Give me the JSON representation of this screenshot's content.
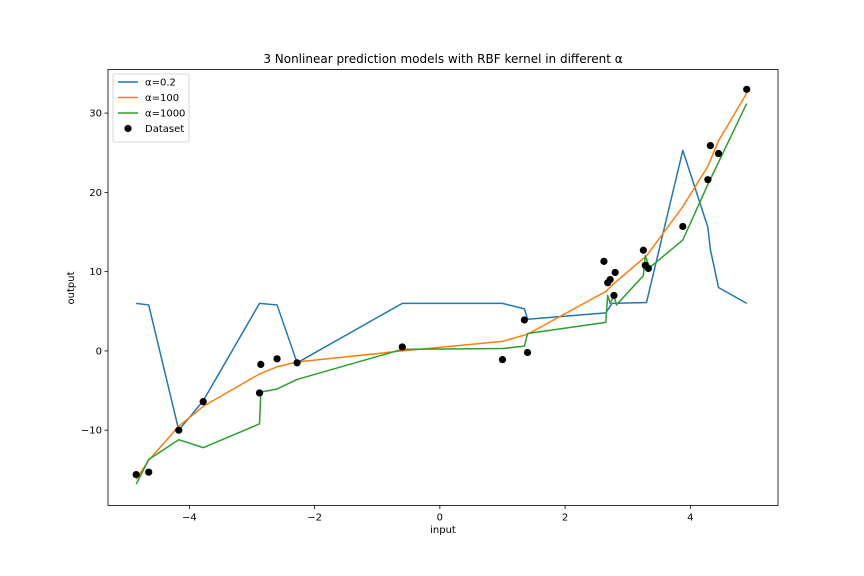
{
  "chart_data": {
    "type": "line",
    "title": "3 Nonlinear prediction models with RBF kernel in different α",
    "xlabel": "input",
    "ylabel": "output",
    "xlim": [
      -5.3,
      5.4
    ],
    "ylim": [
      -19.5,
      35.5
    ],
    "xticks": [
      -4,
      -2,
      0,
      2,
      4
    ],
    "xtick_labels": [
      "−4",
      "−2",
      "0",
      "2",
      "4"
    ],
    "yticks": [
      -10,
      0,
      10,
      20,
      30
    ],
    "ytick_labels": [
      "−10",
      "0",
      "10",
      "20",
      "30"
    ],
    "grid": false,
    "legend_position": "top-left",
    "series": [
      {
        "name": "α=0.2",
        "color": "#1f77b4",
        "marker": "line",
        "x": [
          -4.85,
          -4.65,
          -4.17,
          -3.78,
          -2.88,
          -2.6,
          -2.28,
          -0.6,
          1.0,
          1.35,
          1.4,
          2.65,
          2.75,
          3.3,
          3.88,
          4.28,
          4.32,
          4.45,
          4.9
        ],
        "y": [
          6.0,
          5.8,
          -10.0,
          -6.3,
          6.0,
          5.8,
          -1.5,
          6.0,
          6.0,
          5.3,
          4.0,
          4.8,
          6.0,
          6.1,
          25.3,
          15.6,
          12.8,
          8.0,
          6.0
        ]
      },
      {
        "name": "α=100",
        "color": "#ff7f0e",
        "marker": "line",
        "x": [
          -4.85,
          -4.65,
          -4.17,
          -3.78,
          -2.88,
          -2.6,
          -2.28,
          -0.6,
          1.0,
          1.35,
          1.4,
          2.65,
          2.75,
          3.3,
          3.88,
          4.28,
          4.45,
          4.9
        ],
        "y": [
          -16.2,
          -13.8,
          -9.5,
          -7.0,
          -2.9,
          -2.0,
          -1.4,
          0.0,
          1.2,
          2.0,
          2.1,
          7.5,
          8.3,
          12.0,
          18.2,
          23.3,
          26.5,
          32.5
        ]
      },
      {
        "name": "α=1000",
        "color": "#2ca02c",
        "marker": "line",
        "x": [
          -4.85,
          -4.65,
          -4.17,
          -3.78,
          -2.88,
          -2.86,
          -2.6,
          -2.28,
          -0.6,
          1.0,
          1.35,
          1.4,
          2.65,
          2.68,
          2.72,
          2.78,
          2.82,
          3.25,
          3.28,
          3.35,
          3.88,
          4.28,
          4.45,
          4.9
        ],
        "y": [
          -16.8,
          -13.7,
          -11.2,
          -12.2,
          -9.2,
          -5.2,
          -4.8,
          -3.6,
          0.2,
          0.3,
          0.6,
          2.2,
          3.6,
          7.0,
          6.0,
          7.0,
          5.8,
          9.5,
          12.0,
          10.5,
          14.0,
          21.0,
          23.8,
          31.2
        ]
      },
      {
        "name": "Dataset",
        "color": "#000000",
        "marker": "scatter",
        "x": [
          -4.85,
          -4.65,
          -4.17,
          -3.78,
          -2.88,
          -2.86,
          -2.6,
          -2.28,
          -0.6,
          1.0,
          1.35,
          1.4,
          2.62,
          2.68,
          2.72,
          2.78,
          2.8,
          3.25,
          3.28,
          3.33,
          3.88,
          4.28,
          4.32,
          4.45,
          4.9
        ],
        "y": [
          -15.6,
          -15.3,
          -10.0,
          -6.4,
          -5.3,
          -1.7,
          -1.0,
          -1.5,
          0.5,
          -1.1,
          3.9,
          -0.2,
          11.3,
          8.6,
          9.0,
          7.0,
          9.9,
          12.7,
          10.8,
          10.4,
          15.7,
          21.6,
          25.9,
          24.9,
          33.0
        ]
      }
    ]
  }
}
